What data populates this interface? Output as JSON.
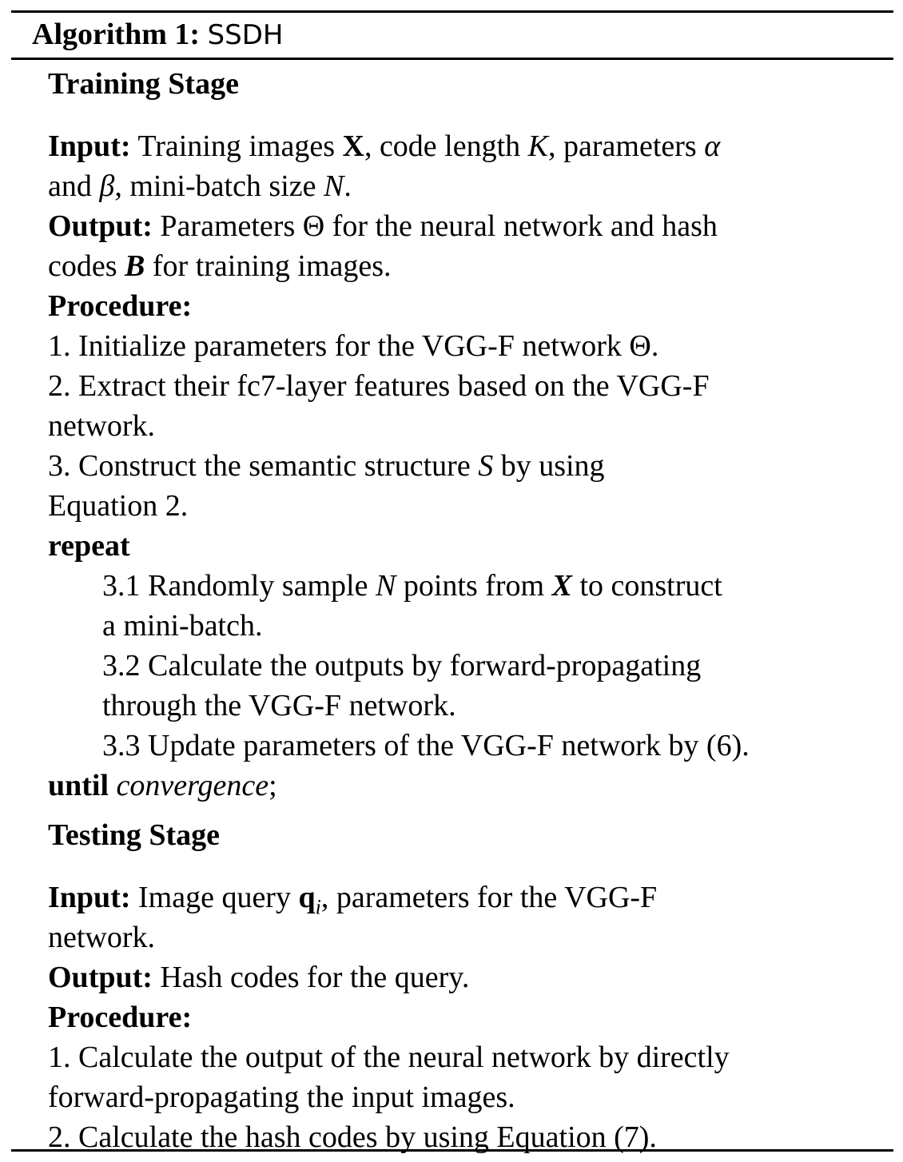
{
  "algorithm": {
    "label": "Algorithm 1:",
    "name": "SSDH"
  },
  "training": {
    "heading": "Training Stage",
    "input_label": "Input:",
    "input_line1_a": "Training images ",
    "input_line1_X": "X",
    "input_line1_b": ", code length ",
    "input_line1_K": "K",
    "input_line1_c": ", parameters ",
    "input_line1_alpha": "α",
    "input_line2_a": "and ",
    "input_line2_beta": "β",
    "input_line2_b": ", mini-batch size ",
    "input_line2_N": "N",
    "input_line2_c": ".",
    "output_label": "Output:",
    "output_line1": "Parameters Θ for the neural network and hash",
    "output_line2_a": "codes ",
    "output_line2_B": "B",
    "output_line2_b": " for training images.",
    "procedure_label": "Procedure:",
    "step1": "1. Initialize parameters for the VGG-F network Θ.",
    "step2_line1": "2. Extract their fc7-layer features based on the VGG-F",
    "step2_line2": "network.",
    "step3_line1_a": "3. Construct the semantic structure ",
    "step3_line1_S": "S",
    "step3_line1_b": " by using",
    "step3_line2": "Equation 2.",
    "repeat_label": "repeat",
    "sub31_line1_a": "3.1 Randomly sample ",
    "sub31_line1_N": "N",
    "sub31_line1_b": " points from ",
    "sub31_line1_X": "X",
    "sub31_line1_c": " to construct",
    "sub31_line2": "a mini-batch.",
    "sub32_line1": "3.2 Calculate the outputs by forward-propagating",
    "sub32_line2": "through the VGG-F network.",
    "sub33_line1": "3.3 Update parameters of the VGG-F network by (6).",
    "until_label": "until",
    "until_cond": "convergence",
    "until_end": ";"
  },
  "testing": {
    "heading": "Testing Stage",
    "input_label": "Input:",
    "input_line1_a": "Image query ",
    "input_line1_q": "q",
    "input_line1_i": "i",
    "input_line1_b": ", parameters for the VGG-F",
    "input_line2": "network.",
    "output_label": "Output:",
    "output_text": "Hash codes for the query.",
    "procedure_label": "Procedure:",
    "step1_line1": "1. Calculate the output of the neural network by directly",
    "step1_line2": "forward-propagating the input images.",
    "step2": "2. Calculate the hash codes by using Equation (7)."
  }
}
